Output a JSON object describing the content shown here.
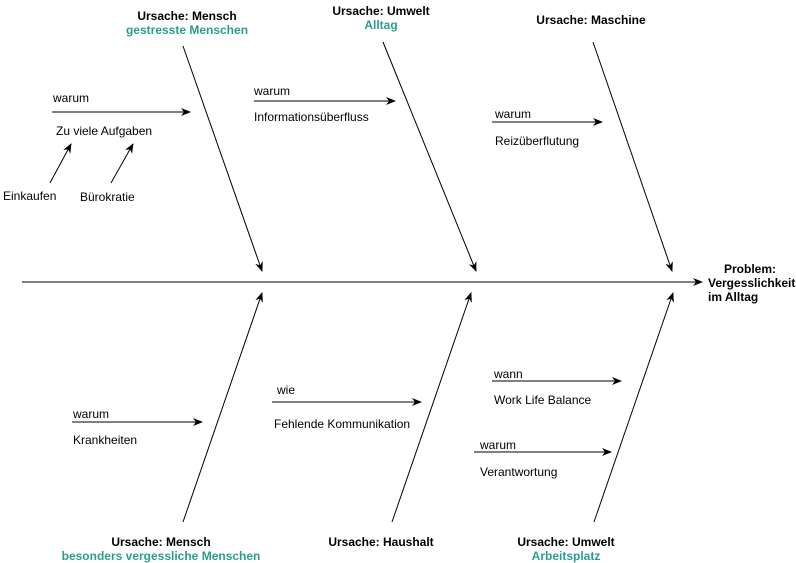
{
  "problem": {
    "label": "Problem:",
    "line1": "Vergesslichkeit",
    "line2": "im Alltag"
  },
  "categories": {
    "top_left": {
      "title": "Ursache: Mensch",
      "subtitle": "gestresste Menschen"
    },
    "top_mid": {
      "title": "Ursache: Umwelt",
      "subtitle": "Alltag"
    },
    "top_right": {
      "title": "Ursache: Maschine"
    },
    "bot_left": {
      "title": "Ursache: Mensch",
      "subtitle": "besonders vergessliche Menschen"
    },
    "bot_mid": {
      "title": "Ursache: Haushalt"
    },
    "bot_right": {
      "title": "Ursache: Umwelt",
      "subtitle": "Arbeitsplatz"
    }
  },
  "causes": {
    "zu_viele": {
      "label": "warum",
      "text": "Zu viele Aufgaben"
    },
    "info": {
      "label": "warum",
      "text": "Informationsüberfluss"
    },
    "reiz": {
      "label": "warum",
      "text": "Reizüberflutung"
    },
    "krank": {
      "label": "warum",
      "text": "Krankheiten"
    },
    "komm": {
      "label": "wie",
      "text": "Fehlende Kommunikation"
    },
    "balance": {
      "label": "wann",
      "text": "Work Life Balance"
    },
    "verantw": {
      "label": "warum",
      "text": "Verantwortung"
    }
  },
  "subcauses": {
    "einkaufen": "Einkaufen",
    "buerokratie": "Bürokratie"
  }
}
